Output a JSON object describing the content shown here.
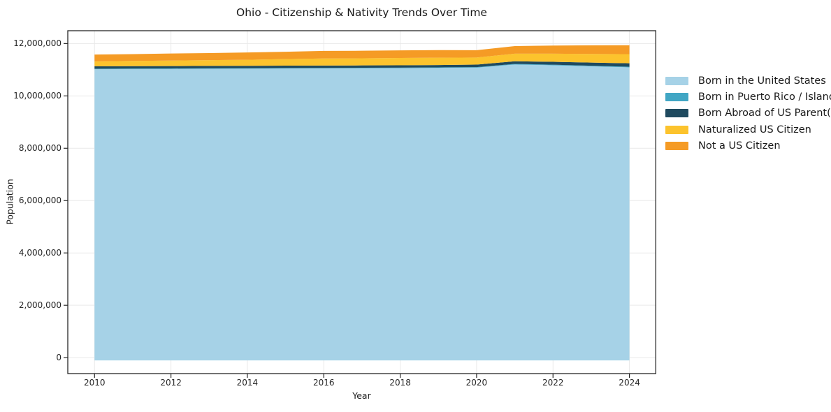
{
  "title": "Ohio - Citizenship & Nativity Trends Over Time",
  "chart_data": {
    "type": "area",
    "stacked": true,
    "title": "Ohio - Citizenship & Nativity Trends Over Time",
    "xlabel": "Year",
    "ylabel": "Population",
    "grid": true,
    "legend_position": "right-outside",
    "x": [
      2010,
      2011,
      2012,
      2013,
      2014,
      2015,
      2016,
      2017,
      2018,
      2019,
      2020,
      2021,
      2022,
      2023,
      2024
    ],
    "x_ticks": [
      2010,
      2012,
      2014,
      2016,
      2018,
      2020,
      2022,
      2024
    ],
    "x_tick_labels": [
      "2010",
      "2012",
      "2014",
      "2016",
      "2018",
      "2020",
      "2022",
      "2024"
    ],
    "y_ticks": [
      0,
      2000000,
      4000000,
      6000000,
      8000000,
      10000000,
      12000000
    ],
    "y_tick_labels": [
      "0",
      "2,000,000",
      "4,000,000",
      "6,000,000",
      "8,000,000",
      "10,000,000",
      "12,000,000"
    ],
    "xlim": [
      2009.3,
      2024.69
    ],
    "ylim": [
      -610000,
      12490000
    ],
    "colors": {
      "grid": "#e9e9e9",
      "spine": "#262626",
      "background": "#ffffff"
    },
    "series": [
      {
        "name": "Born in the United States",
        "color": "#a6d2e7",
        "values": [
          11020000,
          11025000,
          11030000,
          11035000,
          11040000,
          11045000,
          11050000,
          11055000,
          11060000,
          11070000,
          11080000,
          11200000,
          11170000,
          11130000,
          11090000
        ]
      },
      {
        "name": "Born in Puerto Rico / Islands",
        "color": "#41a6c4",
        "values": [
          20000,
          20000,
          20000,
          20000,
          20000,
          20000,
          20000,
          20000,
          20000,
          20000,
          20000,
          22000,
          23000,
          24000,
          25000
        ]
      },
      {
        "name": "Born Abroad of US Parent(s)",
        "color": "#1f4a5f",
        "values": [
          90000,
          90000,
          90000,
          90000,
          90000,
          90000,
          90000,
          90000,
          90000,
          90000,
          95000,
          100000,
          110000,
          120000,
          130000
        ]
      },
      {
        "name": "Naturalized US Citizen",
        "color": "#fcc32d",
        "values": [
          190000,
          200000,
          210000,
          220000,
          230000,
          250000,
          270000,
          270000,
          280000,
          280000,
          270000,
          290000,
          310000,
          330000,
          350000
        ]
      },
      {
        "name": "Not a US Citizen",
        "color": "#f59b25",
        "values": [
          260000,
          260000,
          270000,
          270000,
          280000,
          280000,
          290000,
          290000,
          290000,
          290000,
          280000,
          290000,
          310000,
          330000,
          340000
        ]
      }
    ]
  }
}
